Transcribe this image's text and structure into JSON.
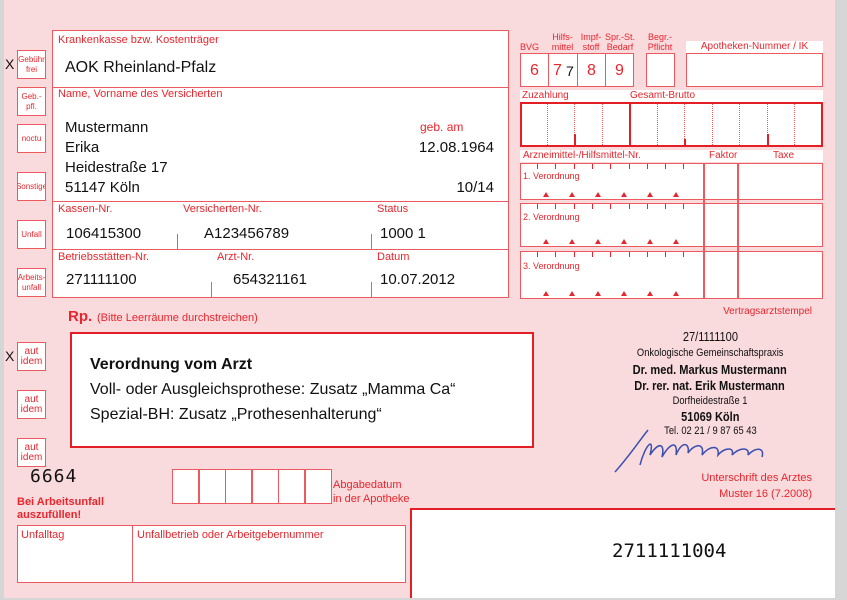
{
  "left_boxes": {
    "gebuehr_frei": "Gebühr frei",
    "gebuehr_frei_mark": "X",
    "geb_pfl": "Geb.-pfl.",
    "noctu": "noctu",
    "sonstige": "Sonstige",
    "unfall": "Unfall",
    "arbeitsunfall": "Arbeits-unfall"
  },
  "insurance": {
    "label": "Krankenkasse bzw. Kostenträger",
    "value": "AOK Rheinland-Pfalz"
  },
  "patient": {
    "label": "Name, Vorname des Versicherten",
    "lastname": "Mustermann",
    "firstname": "Erika",
    "street": "Heidestraße 17",
    "city": "51147 Köln",
    "dob_label": "geb. am",
    "dob": "12.08.1964",
    "valid": "10/14"
  },
  "ids": {
    "kassen_label": "Kassen-Nr.",
    "kassen": "106415300",
    "versicherten_label": "Versicherten-Nr.",
    "versicherten": "A123456789",
    "status_label": "Status",
    "status": "1000 1",
    "bs_label": "Betriebsstätten-Nr.",
    "bs": "271111100",
    "arzt_label": "Arzt-Nr.",
    "arzt": "654321161",
    "datum_label": "Datum",
    "datum": "10.07.2012"
  },
  "codes": {
    "bvg": "BVG",
    "hilfsmittel": "Hilfs- mittel",
    "impfstoff": "Impf- stoff",
    "sprst": "Spr.-St. Bedarf",
    "begr": "Begr.- Pflicht",
    "apotheke": "Apotheken-Nummer / IK",
    "c6": "6",
    "c7": "7",
    "c7_mark": "7",
    "c8": "8",
    "c9": "9"
  },
  "amounts": {
    "zuzahlung": "Zuzahlung",
    "gesamt": "Gesamt-Brutto",
    "arznei": "Arzneimittel-/Hilfsmittel-Nr.",
    "faktor": "Faktor",
    "taxe": "Taxe",
    "v1": "1. Verordnung",
    "v2": "2. Verordnung",
    "v3": "3. Verordnung"
  },
  "rx": {
    "rp": "Rp.",
    "hint": "(Bitte Leerräume durchstreichen)",
    "title": "Verordnung vom Arzt",
    "line1": "Voll- oder Ausgleichsprothese: Zusatz „Mamma Ca“",
    "line2": "Spezial-BH: Zusatz „Prothesenhalterung“"
  },
  "aut_idem": {
    "label": "aut idem",
    "mark": "X"
  },
  "code_6664": "6664",
  "abgabe": {
    "label1": "Abgabedatum",
    "label2": "in der Apotheke"
  },
  "arbeitsunfall": {
    "note1": "Bei Arbeitsunfall",
    "note2": "auszufüllen!",
    "unfalltag": "Unfalltag",
    "betrieb": "Unfallbetrieb oder Arbeitgebernummer"
  },
  "stamp": {
    "label": "Vertragsarztstempel",
    "bsnr": "27/1111100",
    "practice": "Onkologische Gemeinschaftspraxis",
    "doctor1": "Dr. med. Markus Mustermann",
    "doctor2": "Dr. rer. nat. Erik Mustermann",
    "street": "Dorfheidestraße 1",
    "city": "51069 Köln",
    "phone": "Tel. 02 21 / 9 87 65 43",
    "signature_label": "Unterschrift des Arztes",
    "form": "Muster 16 (7.2008)"
  },
  "barcode_number": "2711111004",
  "colors": {
    "form_red": "#e8262d",
    "form_bg": "#f9dadd",
    "signature": "#3a4fb0"
  }
}
